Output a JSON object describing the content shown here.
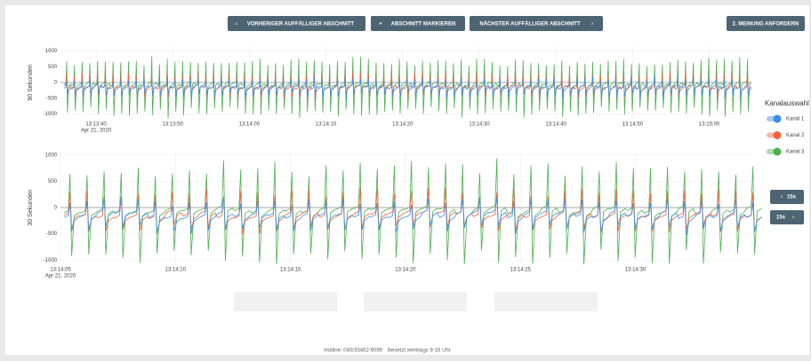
{
  "toolbar": {
    "prev": "VORHERIGER AUFFÄLLIGER ABSCHNITT",
    "mark": "ABSCHNITT MARKIEREN",
    "next": "NÄCHSTER AUFFÄLLIGER ABSCHNITT",
    "second_opinion": "2. MEINUNG ANFORDERN"
  },
  "charts": [
    {
      "y_label": "90 Sekunden",
      "ylim": [
        -1150,
        1150
      ],
      "yticks": [
        1000,
        500,
        0,
        -500,
        -1000
      ],
      "xticks": [
        "13:13:40",
        "13:13:50",
        "13:14:00",
        "13:14:10",
        "13:14:20",
        "13:14:30",
        "13:14:40",
        "13:14:50",
        "13:15:00"
      ],
      "date": "Apr 21, 2020"
    },
    {
      "y_label": "30 Sekunden",
      "ylim": [
        -1080,
        1080
      ],
      "yticks": [
        1000,
        500,
        0,
        -500,
        -1000
      ],
      "xticks": [
        "13:14:05",
        "13:14:10",
        "13:14:15",
        "13:14:20",
        "13:14:25",
        "13:14:30"
      ],
      "date": "Apr 21, 2020"
    }
  ],
  "legend": {
    "title": "Kanalauswahl",
    "channels": [
      {
        "name": "Kanal 1",
        "color": "#3b8fe0"
      },
      {
        "name": "Kanal 2",
        "color": "#f0643c"
      },
      {
        "name": "Kanal 3",
        "color": "#4caf50"
      }
    ]
  },
  "nav": {
    "back": "15s",
    "forward": "15s"
  },
  "footer": {
    "hotline": "Hotline:  040/33462-9099",
    "hours": "Besetzt werktags 9-16 Uhr"
  }
}
